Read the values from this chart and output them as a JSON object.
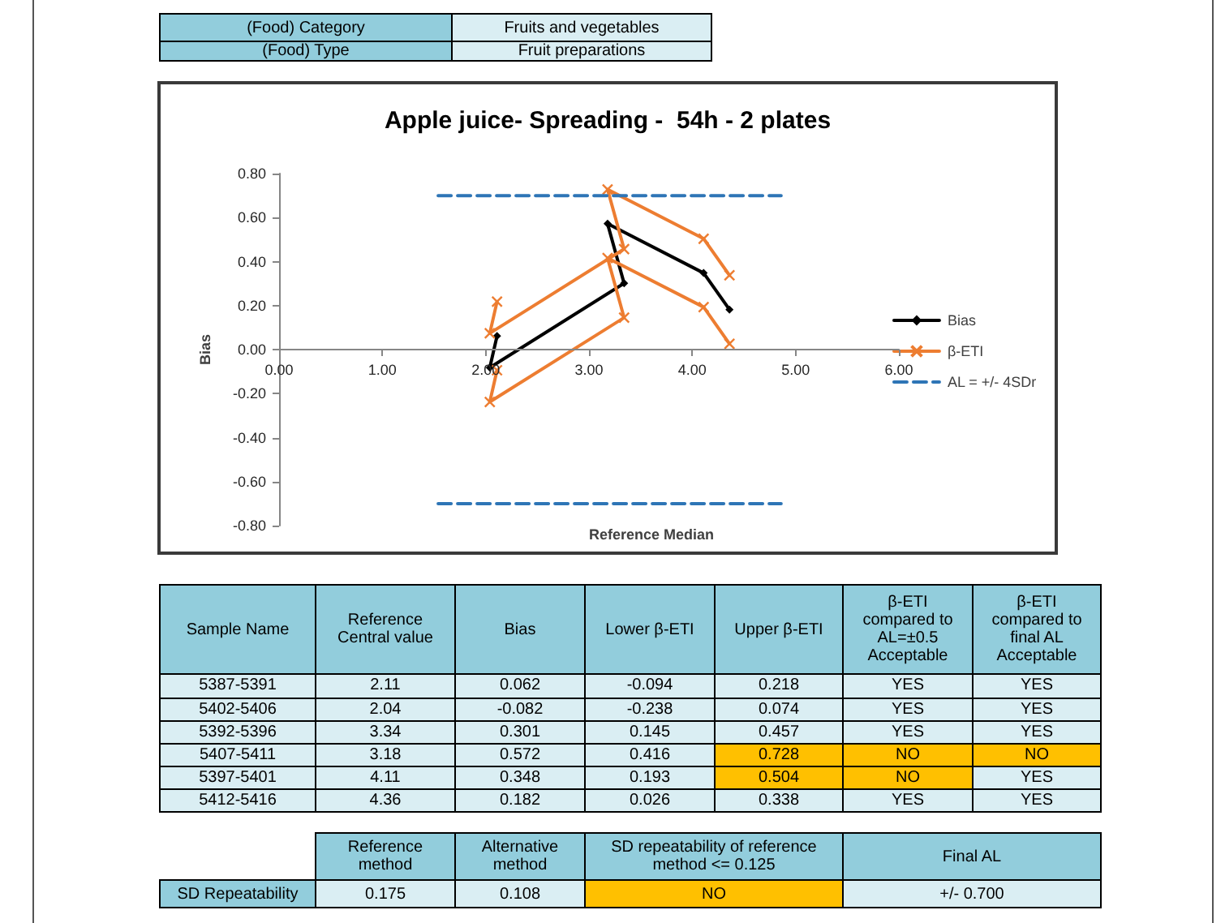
{
  "chart_data": [
    {
      "type": "other",
      "annotations": [
        "(Food) Category",
        "Fruits and vegetables",
        "(Food) Type",
        "Fruit preparations"
      ],
      "colors": [
        "#92cddc",
        "#daeef3",
        "#92cddc",
        "#daeef3"
      ]
    },
    {
      "type": "line",
      "title": "Apple juice- Spreading -  54h - 2 plates",
      "xlabel": "Reference Median",
      "ylabel": "Bias",
      "xlim": [
        0,
        6
      ],
      "xticks": [
        {
          "value": 0,
          "label": "0.00"
        },
        {
          "value": 1,
          "label": "1.00"
        },
        {
          "value": 2,
          "label": "2.00"
        },
        {
          "value": 3,
          "label": "3.00"
        },
        {
          "value": 4,
          "label": "4.00"
        },
        {
          "value": 5,
          "label": "5.00"
        },
        {
          "value": 6,
          "label": "6.00"
        }
      ],
      "ylim": [
        -0.8,
        0.8
      ],
      "yticks": [
        {
          "value": -0.8,
          "label": "-0.80"
        },
        {
          "value": -0.6,
          "label": "-0.60"
        },
        {
          "value": -0.4,
          "label": "-0.40"
        },
        {
          "value": -0.2,
          "label": "-0.20"
        },
        {
          "value": 0,
          "label": "0.00"
        },
        {
          "value": 0.2,
          "label": "0.20"
        },
        {
          "value": 0.4,
          "label": "0.40"
        },
        {
          "value": 0.6,
          "label": "0.60"
        },
        {
          "value": 0.8,
          "label": "0.80"
        }
      ],
      "legend": "right",
      "series": [
        {
          "name": "Bias",
          "color": "#000000",
          "marker": "diamond",
          "x": [
            2.11,
            2.04,
            3.34,
            3.18,
            4.11,
            4.36
          ],
          "values": [
            0.062,
            -0.082,
            0.301,
            0.572,
            0.348,
            0.182
          ]
        },
        {
          "name": "β-ETI",
          "color": "#ed7d31",
          "marker": "cross",
          "x": [
            2.11,
            2.04,
            3.34,
            3.18,
            4.11,
            4.36
          ],
          "values": [
            -0.094,
            -0.238,
            0.145,
            0.416,
            0.193,
            0.026
          ]
        },
        {
          "color": "#ed7d31",
          "marker": "cross",
          "x": [
            2.11,
            2.04,
            3.34,
            3.18,
            4.11,
            4.36
          ],
          "values": [
            0.218,
            0.074,
            0.457,
            0.728,
            0.504,
            0.338
          ]
        },
        {
          "name": "AL = +/- 4SDr",
          "color": "#2e75b6",
          "marker": "none",
          "line_style": "dashed",
          "x": [
            1.54,
            4.86
          ],
          "values": [
            0.7,
            0.7
          ]
        },
        {
          "color": "#2e75b6",
          "marker": "none",
          "line_style": "dashed",
          "x": [
            1.54,
            4.86
          ],
          "values": [
            -0.7,
            -0.7
          ]
        }
      ]
    },
    {
      "type": "other",
      "annotations": [
        "Sample Name",
        "Reference Central value",
        "Bias",
        "Lower β-ETI",
        "Upper β-ETI",
        "β-ETI compared to AL=±0.5 Acceptable",
        "β-ETI compared to final AL Acceptable",
        "5387-5391",
        "2.11",
        "0.062",
        "-0.094",
        "0.218",
        "YES",
        "YES",
        "5402-5406",
        "2.04",
        "-0.082",
        "-0.238",
        "0.074",
        "YES",
        "YES",
        "5392-5396",
        "3.34",
        "0.301",
        "0.145",
        "0.457",
        "YES",
        "YES",
        "5407-5411",
        "3.18",
        "0.572",
        "0.416",
        "0.728",
        "NO",
        "NO",
        "5397-5401",
        "4.11",
        "0.348",
        "0.193",
        "0.504",
        "NO",
        "YES",
        "5412-5416",
        "4.36",
        "0.182",
        "0.026",
        "0.338",
        "YES",
        "YES"
      ],
      "colors": [
        "#92cddc",
        "#92cddc",
        "#92cddc",
        "#92cddc",
        "#92cddc",
        "#92cddc",
        "#92cddc",
        "#daeef3",
        "#daeef3",
        "#daeef3",
        "#daeef3",
        "#daeef3",
        "#daeef3",
        "#daeef3",
        "#daeef3",
        "#daeef3",
        "#daeef3",
        "#daeef3",
        "#daeef3",
        "#daeef3",
        "#daeef3",
        "#daeef3",
        "#daeef3",
        "#daeef3",
        "#daeef3",
        "#daeef3",
        "#daeef3",
        "#daeef3",
        "#daeef3",
        "#daeef3",
        "#daeef3",
        "#daeef3",
        "#ffc000",
        "#ffc000",
        "#ffc000",
        "#daeef3",
        "#daeef3",
        "#daeef3",
        "#daeef3",
        "#ffc000",
        "#ffc000",
        "#daeef3",
        "#daeef3",
        "#daeef3",
        "#daeef3",
        "#daeef3",
        "#daeef3",
        "#daeef3",
        "#daeef3"
      ]
    },
    {
      "type": "other",
      "annotations": [
        "Reference method",
        "Alternative method",
        "SD repeatability of reference method <= 0.125",
        "Final AL",
        "SD Repeatability",
        "0.175",
        "0.108",
        "NO",
        "+/- 0.700"
      ],
      "colors": [
        "#92cddc",
        "#92cddc",
        "#92cddc",
        "#92cddc",
        "#92cddc",
        "#daeef3",
        "#daeef3",
        "#ffc000",
        "#daeef3"
      ]
    }
  ]
}
